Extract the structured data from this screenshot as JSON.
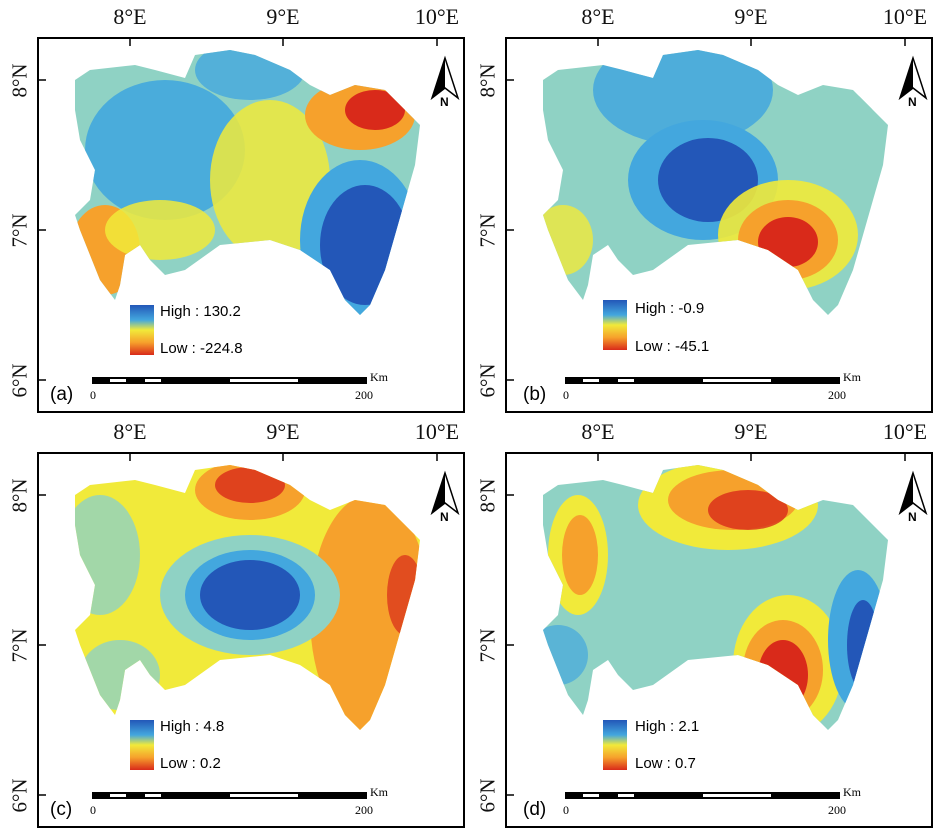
{
  "panels": [
    {
      "label": "(a)",
      "legend": {
        "high": "High : 130.2",
        "low": "Low : -224.8"
      },
      "colors": {
        "high": "#2357b8",
        "low": "#d92a1a"
      }
    },
    {
      "label": "(b)",
      "legend": {
        "high": "High : -0.9",
        "low": "Low : -45.1"
      },
      "colors": {
        "high": "#2357b8",
        "low": "#d92a1a"
      }
    },
    {
      "label": "(c)",
      "legend": {
        "high": "High : 4.8",
        "low": "Low : 0.2"
      },
      "colors": {
        "high": "#2357b8",
        "low": "#d92a1a"
      }
    },
    {
      "label": "(d)",
      "legend": {
        "high": "High : 2.1",
        "low": "Low : 0.7"
      },
      "colors": {
        "high": "#2357b8",
        "low": "#d92a1a"
      }
    }
  ],
  "axes": {
    "longitude": [
      "8°E",
      "9°E",
      "10°E"
    ],
    "latitude": [
      "8°N",
      "7°N",
      "6°N"
    ]
  },
  "scale_bar": {
    "unit": "Km",
    "start": "0",
    "end": "200"
  },
  "north_arrow": {
    "label": "N",
    "icon": "north-arrow-icon"
  },
  "colormap": [
    "#2357b8",
    "#43a7de",
    "#8fd2c4",
    "#f1ea3a",
    "#f6a12c",
    "#d92a1a"
  ]
}
